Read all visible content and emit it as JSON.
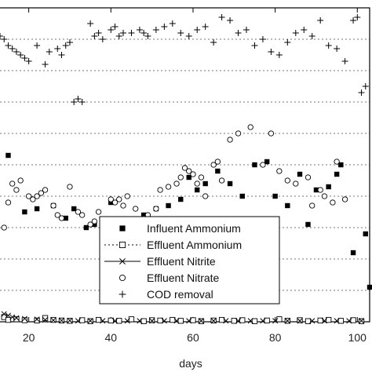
{
  "chart_data": {
    "type": "scatter",
    "xlabel": "days",
    "x_ticks": [
      20,
      40,
      60,
      80,
      100
    ],
    "xlim": [
      13,
      103
    ],
    "ylim": [
      0,
      100
    ],
    "grid": "horizontal dashed",
    "legend_placement": "lower-right",
    "series": [
      {
        "name": "Influent Ammonium",
        "marker": "filled-square",
        "x": [
          15,
          19,
          22,
          26,
          29,
          31,
          34,
          36,
          40,
          43,
          45,
          48,
          51,
          54,
          57,
          59,
          61,
          63,
          66,
          69,
          72,
          75,
          78,
          80,
          83,
          86,
          88,
          90,
          93,
          95,
          96,
          99,
          102,
          103
        ],
        "y": [
          53,
          35,
          36,
          37,
          33,
          36,
          30,
          31,
          38,
          30,
          30,
          34,
          36,
          37,
          39,
          46,
          42,
          44,
          48,
          44,
          40,
          50,
          51,
          40,
          37,
          47,
          31,
          42,
          43,
          47,
          50,
          22,
          28,
          11
        ]
      },
      {
        "name": "Effluent Ammonium",
        "marker": "open-square",
        "x": [
          14,
          15,
          17,
          19,
          22,
          24,
          26,
          28,
          30,
          33,
          35,
          37,
          40,
          42,
          45,
          48,
          50,
          52,
          55,
          57,
          60,
          62,
          65,
          67,
          70,
          72,
          75,
          78,
          81,
          83,
          86,
          88,
          91,
          93,
          96,
          99,
          101
        ],
        "y": [
          1.5,
          0.6,
          0.8,
          0.5,
          0.4,
          1.2,
          0.6,
          0.4,
          0.3,
          0.5,
          0.2,
          0.6,
          0.4,
          0.3,
          0.8,
          0.2,
          0.5,
          0.4,
          0.6,
          0.3,
          0.5,
          0.2,
          0.4,
          0.6,
          0.3,
          0.5,
          0.2,
          0.4,
          0.8,
          0.3,
          0.5,
          0.2,
          0.4,
          0.6,
          0.3,
          0.5,
          0.2
        ]
      },
      {
        "name": "Effluent Nitrite",
        "marker": "cross",
        "x": [
          14,
          15,
          16,
          17,
          19,
          22,
          24,
          26,
          28,
          30,
          32,
          35,
          38,
          41,
          44,
          47,
          50,
          53,
          56,
          59,
          62,
          65,
          68,
          71,
          74,
          77,
          80,
          83,
          86,
          89,
          92,
          95,
          98,
          101
        ],
        "y": [
          2.5,
          2.0,
          1.5,
          1.2,
          1.0,
          0.8,
          0.6,
          0.5,
          0.4,
          0.4,
          0.3,
          0.3,
          0.3,
          0.3,
          0.3,
          0.3,
          0.3,
          0.3,
          0.3,
          0.3,
          0.3,
          0.3,
          0.3,
          0.3,
          0.3,
          0.3,
          0.3,
          0.3,
          0.3,
          0.3,
          0.3,
          0.3,
          0.3,
          0.3
        ]
      },
      {
        "name": "Effluent Nitrate",
        "marker": "open-circle",
        "x": [
          14,
          15,
          16,
          17,
          18,
          20,
          21,
          22,
          23,
          24,
          26,
          27,
          28,
          30,
          32,
          33,
          35,
          36,
          37,
          40,
          41,
          42,
          43,
          44,
          46,
          48,
          49,
          51,
          52,
          54,
          56,
          57,
          58,
          59,
          60,
          61,
          62,
          63,
          65,
          66,
          67,
          69,
          71,
          74,
          77,
          79,
          81,
          83,
          85,
          88,
          89,
          91,
          92,
          94,
          95,
          97
        ],
        "y": [
          30,
          38,
          44,
          42,
          45,
          40,
          39,
          40,
          41,
          42,
          37,
          34,
          33,
          43,
          35,
          34,
          31,
          32,
          35,
          39,
          38,
          39,
          37,
          40,
          36,
          33,
          34,
          36,
          42,
          43,
          44,
          46,
          49,
          48,
          47,
          44,
          46,
          40,
          50,
          51,
          45,
          58,
          60,
          62,
          50,
          60,
          48,
          45,
          44,
          46,
          37,
          42,
          40,
          38,
          51,
          39
        ]
      },
      {
        "name": "COD removal",
        "marker": "plus",
        "x": [
          13,
          14,
          15,
          16,
          17,
          18,
          19,
          20,
          22,
          24,
          25,
          27,
          28,
          29,
          30,
          31,
          32,
          33,
          35,
          36,
          37,
          38,
          40,
          41,
          42,
          43,
          45,
          47,
          48,
          49,
          51,
          53,
          55,
          57,
          59,
          61,
          63,
          65,
          67,
          69,
          71,
          73,
          75,
          77,
          79,
          81,
          83,
          85,
          87,
          89,
          91,
          93,
          95,
          97,
          99,
          100,
          101,
          102
        ],
        "y": [
          91,
          90,
          88,
          87,
          86,
          85,
          84,
          83,
          88,
          82,
          86,
          87,
          85,
          88,
          89,
          70,
          71,
          70,
          95,
          91,
          92,
          90,
          93,
          94,
          91,
          92,
          92,
          93,
          92,
          91,
          93,
          94,
          95,
          92,
          91,
          93,
          94,
          89,
          97,
          96,
          92,
          93,
          88,
          90,
          86,
          85,
          89,
          92,
          93,
          91,
          96,
          88,
          87,
          83,
          96,
          97,
          73,
          75
        ]
      }
    ]
  }
}
